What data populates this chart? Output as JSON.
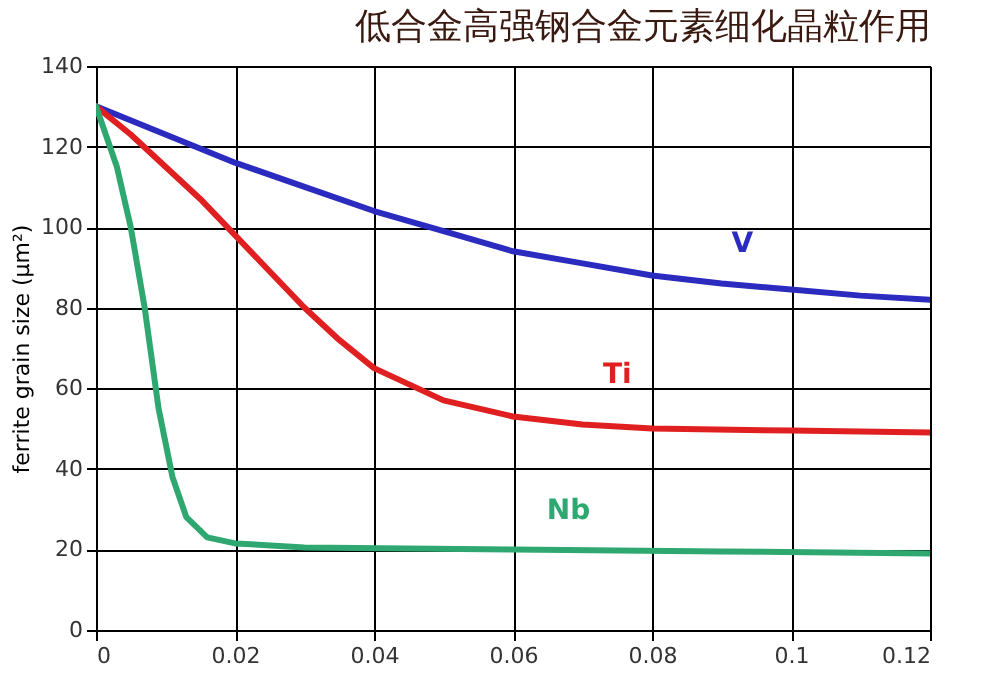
{
  "chart_data": {
    "type": "line",
    "title": "低合金高强钢合金元素细化晶粒作用",
    "ylabel": "ferrite grain size (µm²)",
    "xlim": [
      0,
      0.12
    ],
    "xticks": [
      0,
      0.02,
      0.04,
      0.06,
      0.08,
      0.1,
      0.12
    ],
    "ylim": [
      0,
      140
    ],
    "yticks": [
      0,
      20,
      40,
      60,
      80,
      100,
      120,
      140
    ],
    "grid": true,
    "marker": "none",
    "line_style": "solid",
    "series": [
      {
        "name": "V",
        "color": "#2b2bc0",
        "x": [
          0,
          0.01,
          0.02,
          0.03,
          0.04,
          0.05,
          0.06,
          0.07,
          0.08,
          0.09,
          0.1,
          0.11,
          0.12
        ],
        "values": [
          130,
          123,
          116,
          110,
          104,
          99,
          94,
          91,
          88,
          86,
          84.5,
          83,
          82
        ]
      },
      {
        "name": "Ti",
        "color": "#e02020",
        "x": [
          0,
          0.005,
          0.01,
          0.015,
          0.02,
          0.025,
          0.03,
          0.035,
          0.04,
          0.05,
          0.06,
          0.07,
          0.08,
          0.1,
          0.12
        ],
        "values": [
          130,
          123,
          115,
          107,
          98,
          89,
          80,
          72,
          65,
          57,
          53,
          51,
          50,
          49.5,
          49
        ]
      },
      {
        "name": "Nb",
        "color": "#2ea870",
        "x": [
          0,
          0.003,
          0.005,
          0.007,
          0.009,
          0.011,
          0.013,
          0.016,
          0.02,
          0.03,
          0.06,
          0.09,
          0.12
        ],
        "values": [
          130,
          115,
          100,
          80,
          55,
          38,
          28,
          23,
          21.5,
          20.5,
          20,
          19.5,
          19
        ]
      }
    ]
  }
}
